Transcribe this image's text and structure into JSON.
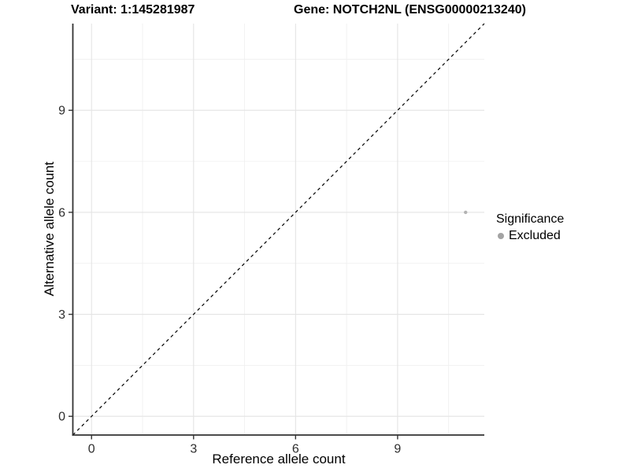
{
  "chart_data": {
    "type": "scatter",
    "title_left": "Variant: 1:145281987",
    "title_right": "Gene: NOTCH2NL (ENSG00000213240)",
    "xlabel": "Reference allele count",
    "ylabel": "Alternative allele count",
    "xlim": [
      -0.55,
      11.55
    ],
    "ylim": [
      -0.55,
      11.55
    ],
    "x_ticks": [
      0,
      3,
      6,
      9
    ],
    "y_ticks": [
      0,
      3,
      6,
      9
    ],
    "x_minor_ticks": [
      1.5,
      4.5,
      7.5,
      10.5
    ],
    "y_minor_ticks": [
      1.5,
      4.5,
      7.5,
      10.5
    ],
    "grid": "major+minor",
    "reference_line": {
      "type": "identity",
      "slope": 1,
      "intercept": 0,
      "style": "dashed",
      "color": "#000000"
    },
    "series": [
      {
        "name": "Excluded",
        "color": "#b3b3b3",
        "points": [
          {
            "x": 11,
            "y": 6
          }
        ]
      }
    ],
    "legend": {
      "title": "Significance",
      "position": "right",
      "items": [
        {
          "label": "Excluded",
          "color": "#a3a3a3"
        }
      ]
    },
    "colors": {
      "axis_line": "#333333",
      "tick_text": "#2e2e2e",
      "grid_major": "#e4e4e4",
      "grid_minor": "#f0f0f0",
      "background": "#ffffff"
    }
  }
}
